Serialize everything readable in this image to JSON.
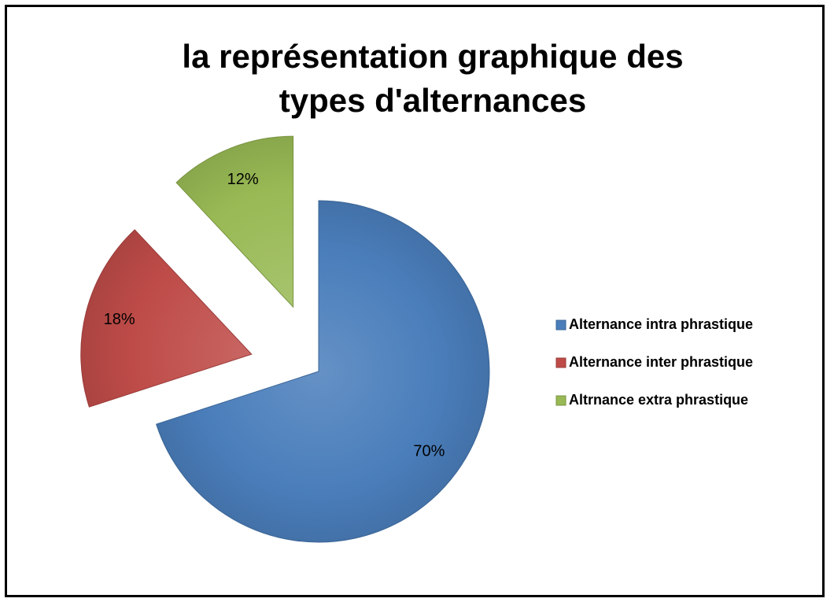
{
  "chart_data": {
    "type": "pie",
    "title": "la représentation graphique des types d'alternances",
    "categories": [
      "Alternance intra phrastique",
      "Alternance inter phrastique",
      "Altrnance extra phrastique"
    ],
    "values": [
      70,
      18,
      12
    ],
    "value_labels": [
      "70%",
      "18%",
      "12%"
    ],
    "colors": [
      "#4a7ebb",
      "#be4b48",
      "#98b954"
    ],
    "legend": "right"
  }
}
